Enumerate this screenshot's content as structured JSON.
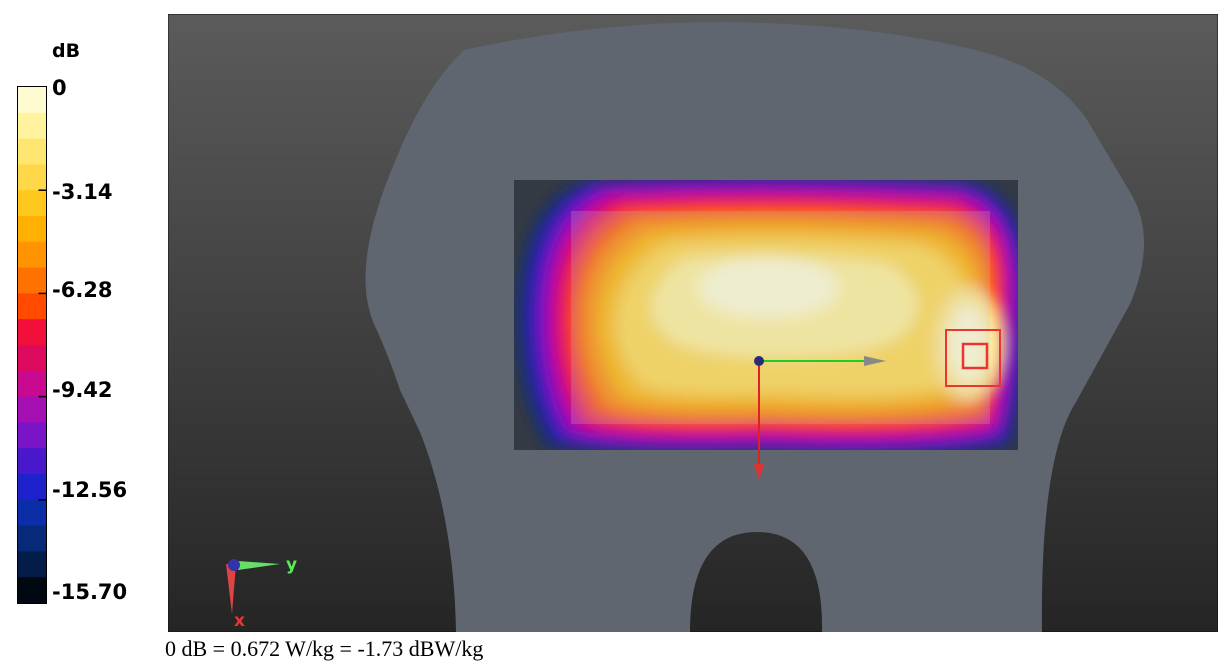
{
  "legend": {
    "unit": "dB",
    "ticks": [
      "0",
      "-3.14",
      "-6.28",
      "-9.42",
      "-12.56",
      "-15.70"
    ],
    "bands": [
      "#fffbd0",
      "#fff3a0",
      "#ffe670",
      "#ffd84a",
      "#ffc81c",
      "#ffb000",
      "#ff9300",
      "#ff7200",
      "#ff4a00",
      "#f2103a",
      "#de0a5e",
      "#c80a90",
      "#a410b4",
      "#7a14c8",
      "#4a18cc",
      "#1f22cc",
      "#0a2ea8",
      "#062a78",
      "#041c48",
      "#020812"
    ]
  },
  "scene": {
    "axis_y": "y",
    "axis_x": "x"
  },
  "caption": "0 dB = 0.672 W/kg = -1.73 dBW/kg"
}
